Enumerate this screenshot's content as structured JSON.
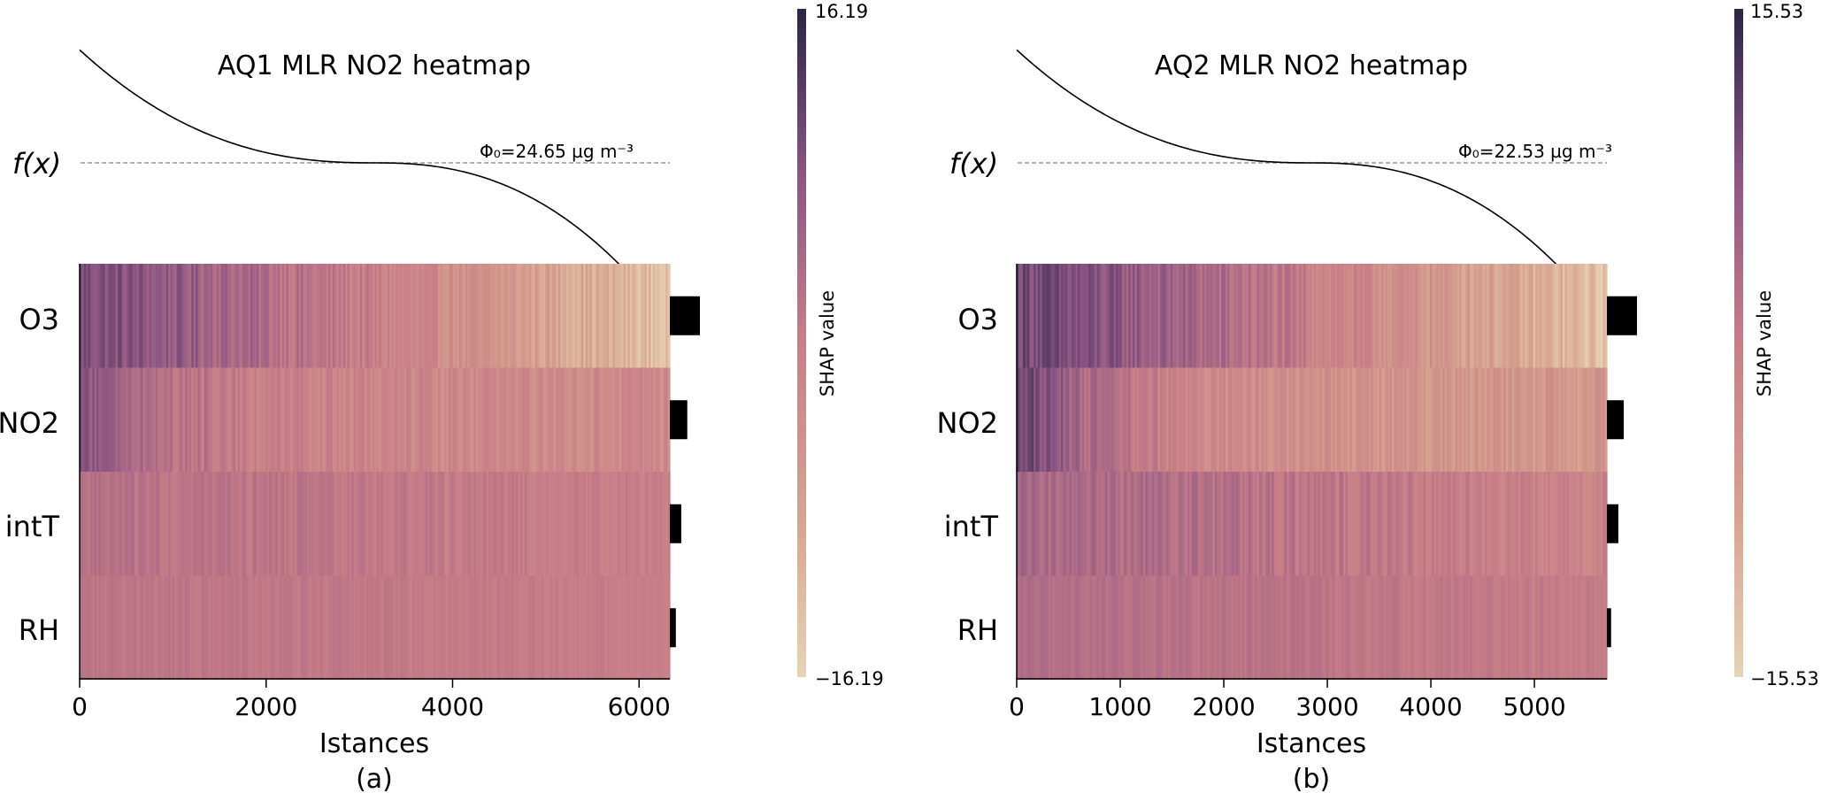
{
  "chart_data": [
    {
      "type": "heatmap",
      "panel_label": "(a)",
      "title": "AQ1 MLR NO2 heatmap",
      "fx_label": "f(x)",
      "base_value_label": "Φ₀=24.65 µg m⁻³",
      "xlabel": "Istances",
      "xlim": [
        0,
        6330
      ],
      "xticks": [
        0,
        2000,
        4000,
        6000
      ],
      "xtick_labels": [
        "0",
        "2000",
        "4000",
        "6000"
      ],
      "features": [
        "O3",
        "NO2",
        "intT",
        "RH"
      ],
      "importance_bars": [
        1.0,
        0.58,
        0.38,
        0.2
      ],
      "colorbar": {
        "label": "SHAP value",
        "max_label": "16.19",
        "min_label": "−16.19",
        "vmax": 16.19,
        "vmin": -16.19
      },
      "rows": [
        {
          "feature": "O3",
          "start": 9.5,
          "end": -13.5,
          "noise": 3.0,
          "shape": "linear"
        },
        {
          "feature": "NO2",
          "start": 8.5,
          "end": -3.0,
          "noise": 2.6,
          "shape": "front"
        },
        {
          "feature": "intT",
          "start": 2.2,
          "end": -0.5,
          "noise": 1.6,
          "shape": "linear"
        },
        {
          "feature": "RH",
          "start": 1.6,
          "end": -0.2,
          "noise": 1.0,
          "shape": "linear"
        }
      ],
      "fx_curve": {
        "start": 1.0,
        "base": 0.22,
        "end": -0.88
      }
    },
    {
      "type": "heatmap",
      "panel_label": "(b)",
      "title": "AQ2 MLR NO2 heatmap",
      "fx_label": "f(x)",
      "base_value_label": "Φ₀=22.53 µg m⁻³",
      "xlabel": "Istances",
      "xlim": [
        0,
        5700
      ],
      "xticks": [
        0,
        1000,
        2000,
        3000,
        4000,
        5000
      ],
      "xtick_labels": [
        "0",
        "1000",
        "2000",
        "3000",
        "4000",
        "5000"
      ],
      "features": [
        "O3",
        "NO2",
        "intT",
        "RH"
      ],
      "importance_bars": [
        1.0,
        0.56,
        0.38,
        0.14
      ],
      "colorbar": {
        "label": "SHAP value",
        "max_label": "15.53",
        "min_label": "−15.53",
        "vmax": 15.53,
        "vmin": -15.53
      },
      "rows": [
        {
          "feature": "O3",
          "start": 10.0,
          "end": -13.0,
          "noise": 3.0,
          "shape": "linear"
        },
        {
          "feature": "NO2",
          "start": 11.5,
          "end": -6.0,
          "noise": 2.8,
          "shape": "front"
        },
        {
          "feature": "intT",
          "start": 4.0,
          "end": -1.5,
          "noise": 2.2,
          "shape": "linear"
        },
        {
          "feature": "RH",
          "start": 2.8,
          "end": 0.0,
          "noise": 1.2,
          "shape": "linear"
        }
      ],
      "fx_curve": {
        "start": 1.0,
        "base": 0.22,
        "end": -0.88
      }
    }
  ]
}
